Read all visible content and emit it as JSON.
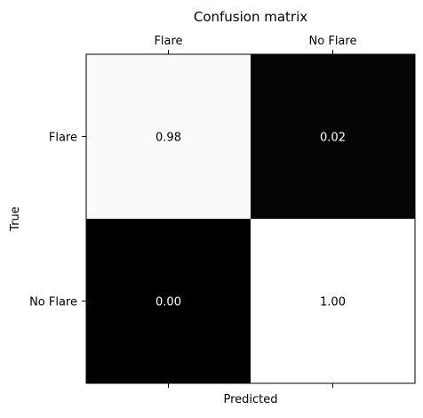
{
  "chart_data": {
    "type": "heatmap",
    "title": "Confusion matrix",
    "xlabel": "Predicted",
    "ylabel": "True",
    "x_categories": [
      "Flare",
      "No Flare"
    ],
    "y_categories": [
      "Flare",
      "No Flare"
    ],
    "x_tick_position": "top",
    "values": [
      [
        0.98,
        0.02
      ],
      [
        0.0,
        1.0
      ]
    ],
    "cell_labels": [
      [
        "0.98",
        "0.02"
      ],
      [
        "0.00",
        "1.00"
      ]
    ],
    "colormap": "gray",
    "vmin": 0,
    "vmax": 1,
    "grid": false
  }
}
